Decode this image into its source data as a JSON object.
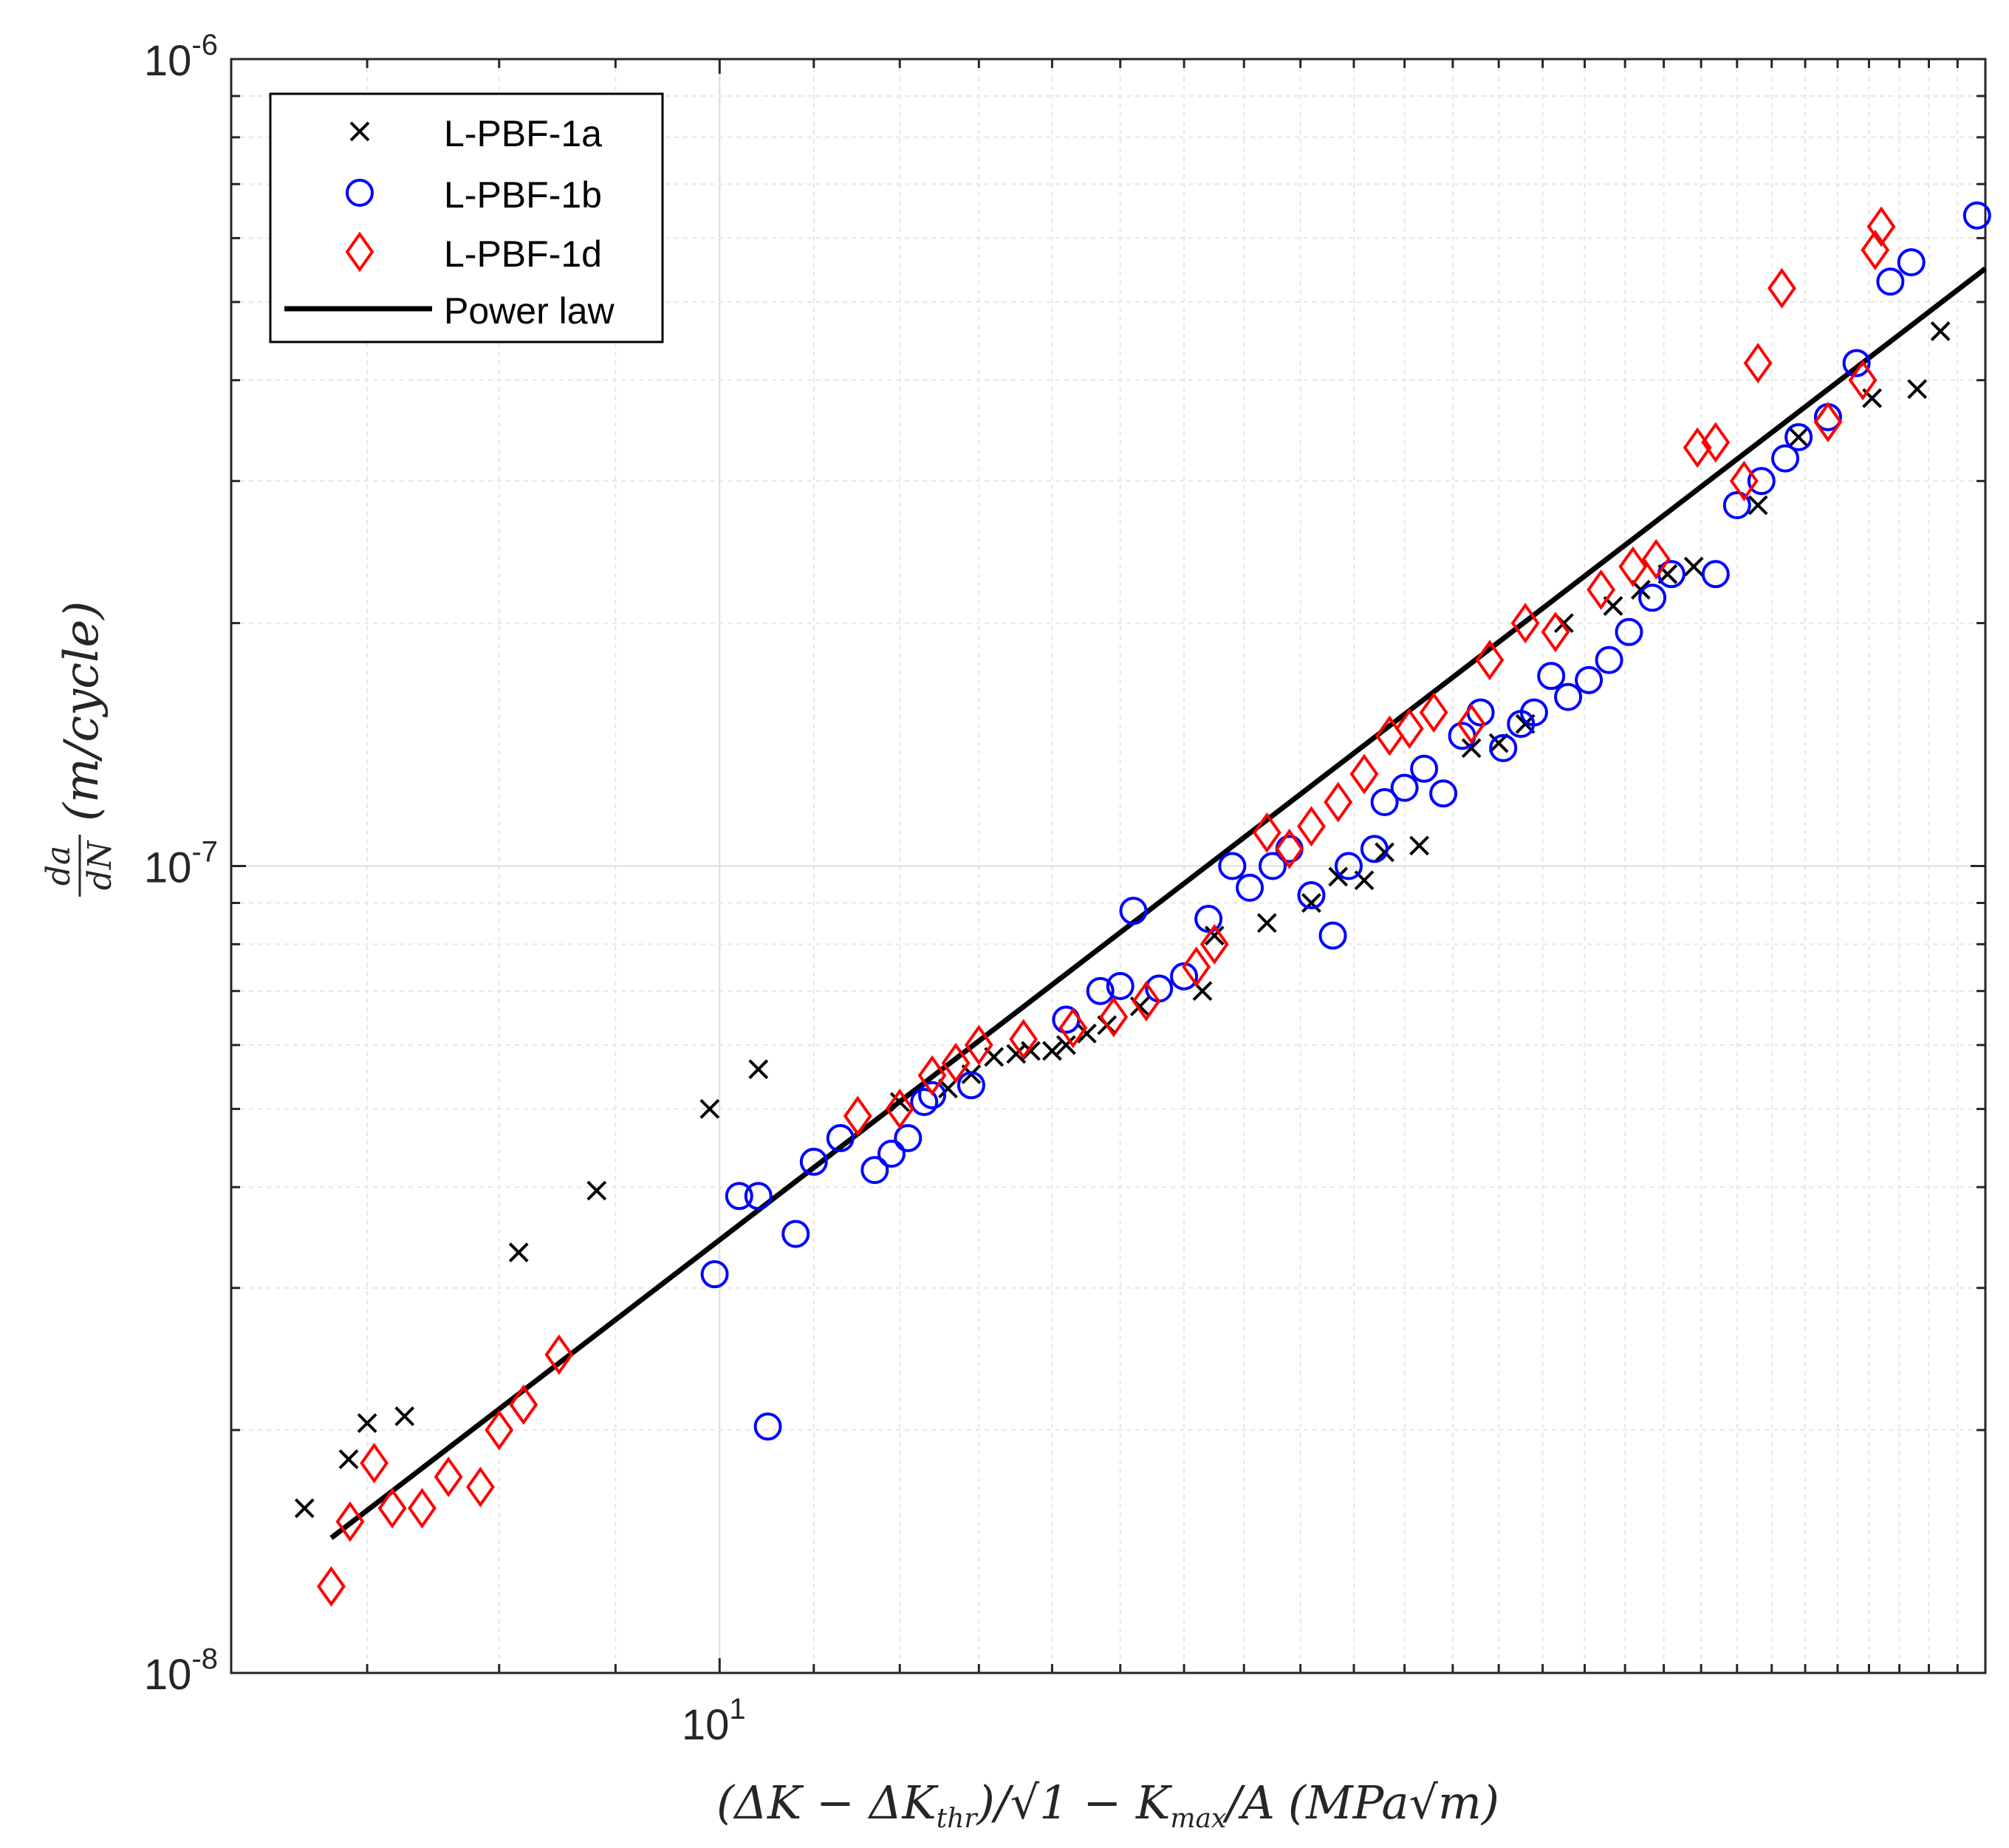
{
  "chart_data": {
    "type": "scatter",
    "xscale": "log",
    "yscale": "log",
    "xlim": [
      6.1,
      36
    ],
    "ylim": [
      1e-08,
      1e-06
    ],
    "grid": true,
    "legend_position": "top-left",
    "x_ticks": [
      {
        "value": 10,
        "mantissa": "10",
        "exponent": "1"
      }
    ],
    "y_ticks": [
      {
        "value": 1e-08,
        "mantissa": "10",
        "exponent": "-8"
      },
      {
        "value": 1e-07,
        "mantissa": "10",
        "exponent": "-7"
      },
      {
        "value": 1e-06,
        "mantissa": "10",
        "exponent": "-6"
      }
    ],
    "xlabel": {
      "open": "(ΔK − ΔK",
      "sub": "thr",
      "mid": ")/√1 − K",
      "sub2": "max",
      "tail": "/A",
      "unit": "(MPa√m)"
    },
    "ylabel": {
      "num": "da",
      "den": "dN",
      "unit": "(m/cycle)"
    },
    "series": [
      {
        "name": "L-PBF-1a",
        "marker": "x",
        "color": "#000000",
        "points": [
          [
            6.57,
            1.6e-08
          ],
          [
            6.87,
            1.84e-08
          ],
          [
            7.0,
            2.04e-08
          ],
          [
            7.27,
            2.08e-08
          ],
          [
            8.16,
            3.32e-08
          ],
          [
            8.83,
            3.96e-08
          ],
          [
            9.9,
            5e-08
          ],
          [
            10.4,
            5.6e-08
          ],
          [
            12.0,
            5.1e-08
          ],
          [
            12.6,
            5.3e-08
          ],
          [
            12.9,
            5.52e-08
          ],
          [
            13.2,
            5.8e-08
          ],
          [
            13.5,
            5.85e-08
          ],
          [
            13.7,
            5.9e-08
          ],
          [
            14.0,
            5.9e-08
          ],
          [
            14.2,
            6e-08
          ],
          [
            14.5,
            6.2e-08
          ],
          [
            14.8,
            6.35e-08
          ],
          [
            15.3,
            6.7e-08
          ],
          [
            16.3,
            7e-08
          ],
          [
            16.5,
            8.2e-08
          ],
          [
            17.4,
            8.5e-08
          ],
          [
            18.2,
            9e-08
          ],
          [
            18.7,
            9.7e-08
          ],
          [
            19.2,
            9.6e-08
          ],
          [
            19.6,
            1.04e-07
          ],
          [
            20.3,
            1.06e-07
          ],
          [
            21.4,
            1.4e-07
          ],
          [
            22.0,
            1.42e-07
          ],
          [
            22.6,
            1.5e-07
          ],
          [
            23.5,
            2e-07
          ],
          [
            24.7,
            2.1e-07
          ],
          [
            25.4,
            2.2e-07
          ],
          [
            26.1,
            2.3e-07
          ],
          [
            26.8,
            2.35e-07
          ],
          [
            28.6,
            2.8e-07
          ],
          [
            29.8,
            3.4e-07
          ],
          [
            32.1,
            3.8e-07
          ],
          [
            33.6,
            3.9e-07
          ],
          [
            34.4,
            4.6e-07
          ]
        ]
      },
      {
        "name": "L-PBF-1b",
        "marker": "o",
        "color": "#0000ff",
        "points": [
          [
            9.95,
            3.12e-08
          ],
          [
            10.2,
            3.9e-08
          ],
          [
            10.4,
            3.9e-08
          ],
          [
            10.5,
            2.02e-08
          ],
          [
            10.8,
            3.5e-08
          ],
          [
            11.0,
            4.3e-08
          ],
          [
            11.3,
            4.6e-08
          ],
          [
            11.7,
            4.2e-08
          ],
          [
            11.9,
            4.4e-08
          ],
          [
            12.1,
            4.6e-08
          ],
          [
            12.3,
            5.1e-08
          ],
          [
            12.4,
            5.2e-08
          ],
          [
            12.9,
            5.35e-08
          ],
          [
            14.2,
            6.45e-08
          ],
          [
            14.7,
            7e-08
          ],
          [
            15.0,
            7.1e-08
          ],
          [
            15.2,
            8.8e-08
          ],
          [
            15.6,
            7.05e-08
          ],
          [
            16.0,
            7.3e-08
          ],
          [
            16.4,
            8.6e-08
          ],
          [
            16.8,
            1e-07
          ],
          [
            17.1,
            9.4e-08
          ],
          [
            17.5,
            1e-07
          ],
          [
            17.8,
            1.05e-07
          ],
          [
            18.2,
            9.2e-08
          ],
          [
            18.6,
            8.2e-08
          ],
          [
            18.9,
            1e-07
          ],
          [
            19.4,
            1.05e-07
          ],
          [
            19.6,
            1.2e-07
          ],
          [
            20.0,
            1.25e-07
          ],
          [
            20.4,
            1.32e-07
          ],
          [
            20.8,
            1.23e-07
          ],
          [
            21.2,
            1.45e-07
          ],
          [
            21.6,
            1.55e-07
          ],
          [
            22.1,
            1.4e-07
          ],
          [
            22.5,
            1.5e-07
          ],
          [
            22.8,
            1.55e-07
          ],
          [
            23.2,
            1.72e-07
          ],
          [
            23.6,
            1.62e-07
          ],
          [
            24.1,
            1.7e-07
          ],
          [
            24.6,
            1.8e-07
          ],
          [
            25.1,
            1.95e-07
          ],
          [
            25.7,
            2.15e-07
          ],
          [
            26.2,
            2.3e-07
          ],
          [
            27.4,
            2.3e-07
          ],
          [
            28.0,
            2.8e-07
          ],
          [
            28.7,
            3e-07
          ],
          [
            29.4,
            3.2e-07
          ],
          [
            29.8,
            3.4e-07
          ],
          [
            30.7,
            3.6e-07
          ],
          [
            31.6,
            4.2e-07
          ],
          [
            32.7,
            5.3e-07
          ],
          [
            33.4,
            5.6e-07
          ],
          [
            35.7,
            6.4e-07
          ]
        ]
      },
      {
        "name": "L-PBF-1d",
        "marker": "d",
        "color": "#ff0000",
        "points": [
          [
            6.75,
            1.28e-08
          ],
          [
            6.88,
            1.54e-08
          ],
          [
            7.05,
            1.82e-08
          ],
          [
            7.18,
            1.6e-08
          ],
          [
            7.4,
            1.6e-08
          ],
          [
            7.6,
            1.75e-08
          ],
          [
            7.85,
            1.7e-08
          ],
          [
            8.0,
            2e-08
          ],
          [
            8.2,
            2.15e-08
          ],
          [
            8.5,
            2.48e-08
          ],
          [
            11.5,
            4.9e-08
          ],
          [
            12.0,
            5e-08
          ],
          [
            12.4,
            5.5e-08
          ],
          [
            12.7,
            5.7e-08
          ],
          [
            13.0,
            6e-08
          ],
          [
            13.6,
            6.1e-08
          ],
          [
            14.3,
            6.3e-08
          ],
          [
            14.9,
            6.5e-08
          ],
          [
            15.4,
            6.8e-08
          ],
          [
            16.2,
            7.5e-08
          ],
          [
            16.5,
            8e-08
          ],
          [
            17.4,
            1.1e-07
          ],
          [
            17.8,
            1.05e-07
          ],
          [
            18.2,
            1.12e-07
          ],
          [
            18.7,
            1.2e-07
          ],
          [
            19.2,
            1.3e-07
          ],
          [
            19.7,
            1.45e-07
          ],
          [
            20.1,
            1.48e-07
          ],
          [
            20.6,
            1.55e-07
          ],
          [
            21.4,
            1.5e-07
          ],
          [
            21.8,
            1.8e-07
          ],
          [
            22.6,
            2e-07
          ],
          [
            23.3,
            1.95e-07
          ],
          [
            24.4,
            2.2e-07
          ],
          [
            25.2,
            2.35e-07
          ],
          [
            25.8,
            2.4e-07
          ],
          [
            26.9,
            3.3e-07
          ],
          [
            27.4,
            3.35e-07
          ],
          [
            28.2,
            3e-07
          ],
          [
            28.6,
            4.2e-07
          ],
          [
            29.3,
            5.2e-07
          ],
          [
            30.7,
            3.55e-07
          ],
          [
            31.8,
            4e-07
          ],
          [
            32.2,
            5.8e-07
          ],
          [
            32.4,
            6.2e-07
          ]
        ]
      }
    ],
    "fit": {
      "name": "Power law",
      "color": "#000000",
      "x_range": [
        6.75,
        36
      ],
      "points": [
        [
          6.75,
          1.47e-08
        ],
        [
          36,
          5.5e-07
        ]
      ]
    }
  }
}
